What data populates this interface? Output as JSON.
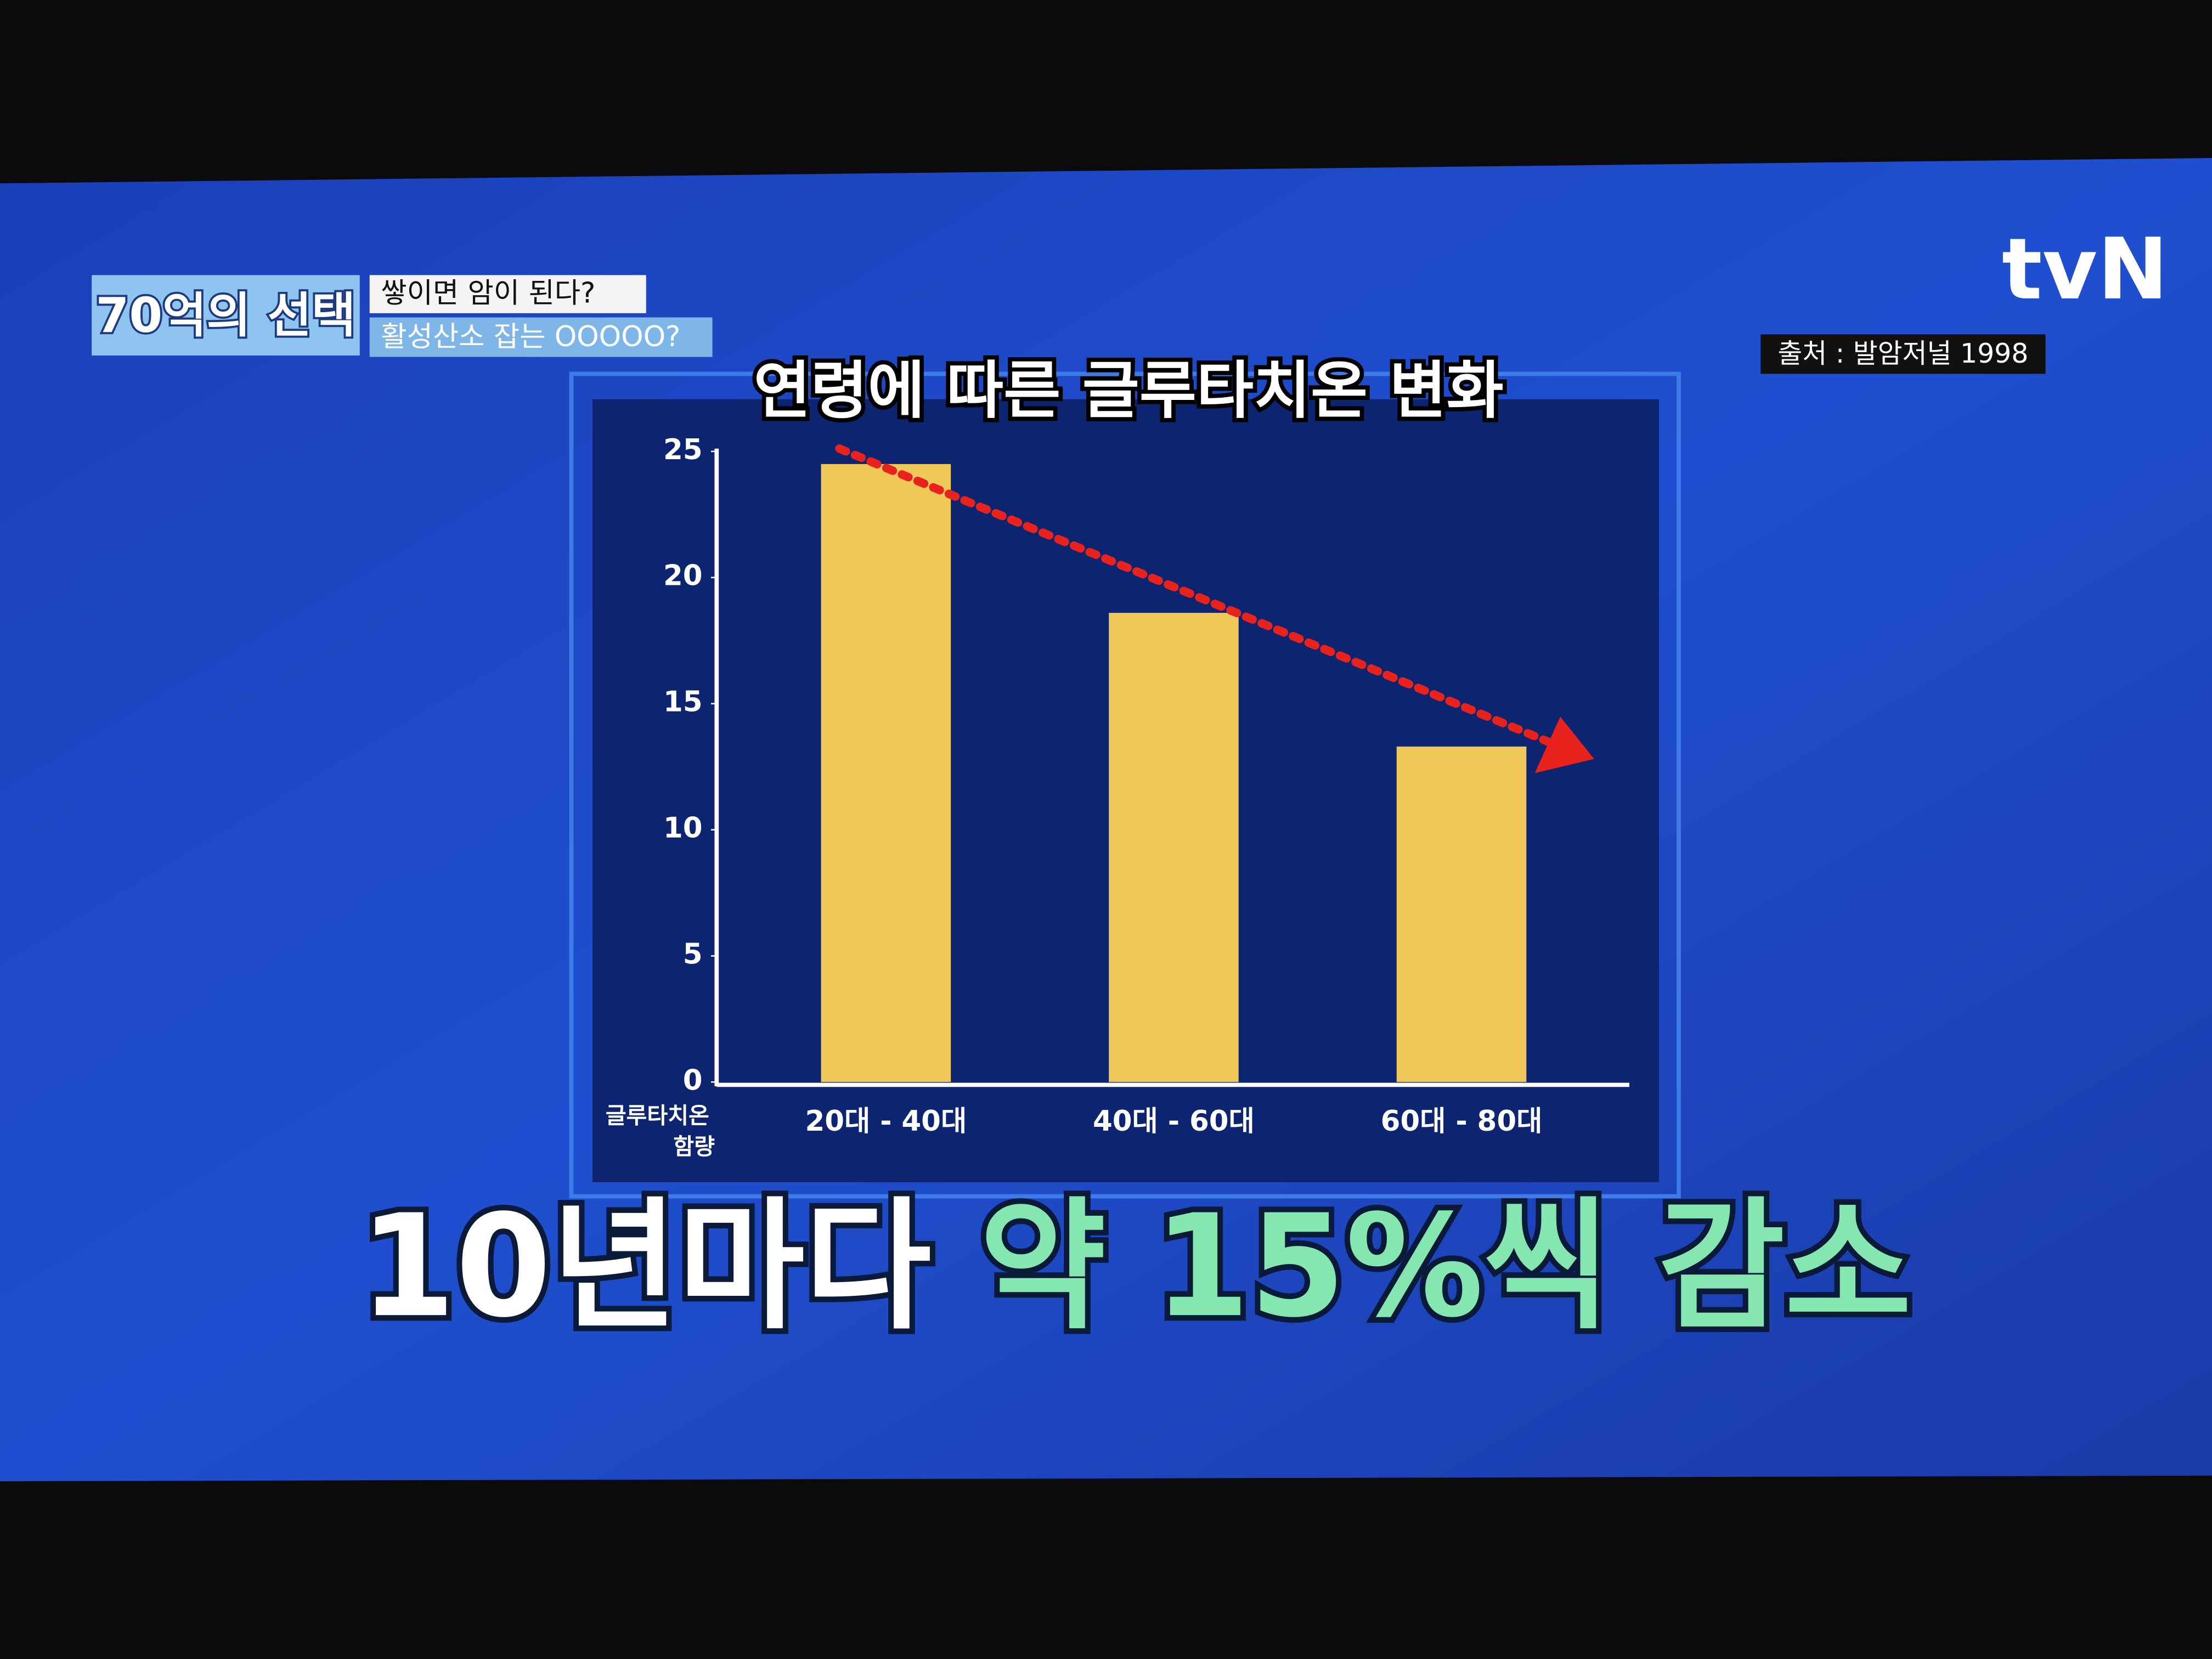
{
  "show": {
    "logo": "70억의 선택",
    "headline": "쌓이면 암이 된다?",
    "subheadline": "활성산소 잡는 OOOOO?",
    "channel": "tvN",
    "source": "출처 : 발암저널 1998"
  },
  "chart_data": {
    "type": "bar",
    "title": "연령에 따른 글루타치온 변화",
    "y_label": [
      "글루타치온",
      "함량"
    ],
    "categories": [
      "20대 - 40대",
      "40대 - 60대",
      "60대 - 80대"
    ],
    "values": [
      24.5,
      18.6,
      13.3
    ],
    "color": "#f0c85a",
    "ylim": [
      0,
      25
    ],
    "yticks": [
      0,
      5,
      10,
      15,
      20,
      25
    ],
    "grid": false
  },
  "caption": [
    "10년마다",
    "약 15%씩 감소"
  ]
}
